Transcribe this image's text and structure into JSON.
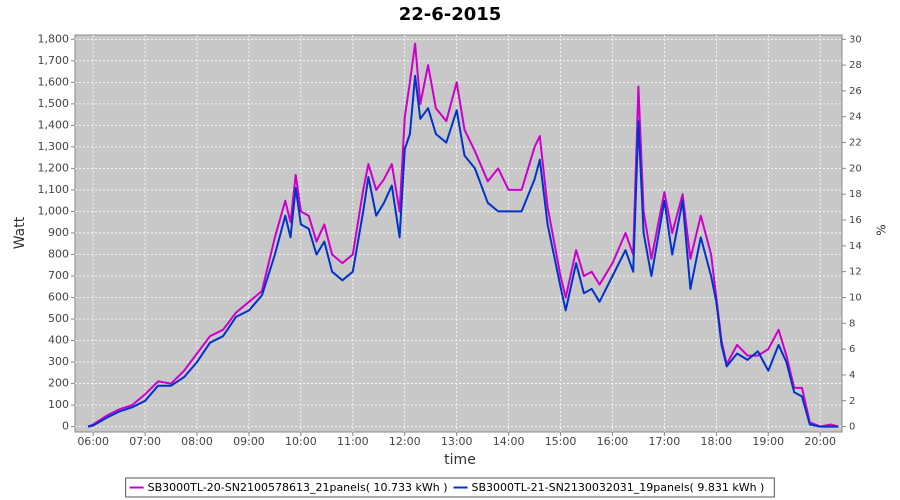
{
  "chart_data": {
    "type": "line",
    "title": "22-6-2015",
    "x_label": "time",
    "y_label": "Watt",
    "y2_label": "%",
    "x": [
      5.9,
      6.0,
      6.25,
      6.5,
      6.75,
      7.0,
      7.25,
      7.5,
      7.75,
      8.0,
      8.25,
      8.5,
      8.75,
      9.0,
      9.25,
      9.5,
      9.7,
      9.8,
      9.9,
      10.0,
      10.15,
      10.3,
      10.45,
      10.6,
      10.8,
      11.0,
      11.2,
      11.3,
      11.45,
      11.6,
      11.75,
      11.9,
      12.0,
      12.1,
      12.2,
      12.3,
      12.45,
      12.6,
      12.8,
      13.0,
      13.15,
      13.35,
      13.6,
      13.8,
      14.0,
      14.25,
      14.5,
      14.6,
      14.75,
      15.0,
      15.1,
      15.3,
      15.45,
      15.6,
      15.75,
      16.0,
      16.25,
      16.4,
      16.5,
      16.6,
      16.75,
      17.0,
      17.15,
      17.35,
      17.5,
      17.7,
      17.9,
      18.0,
      18.1,
      18.2,
      18.4,
      18.6,
      18.8,
      19.0,
      19.2,
      19.35,
      19.5,
      19.65,
      19.8,
      20.0,
      20.2,
      20.35
    ],
    "series": [
      {
        "name": "SB3000TL-20-SN2100578613_21panels( 10.733 kWh )",
        "color": "#cc00cc",
        "values": [
          0,
          10,
          50,
          80,
          100,
          150,
          210,
          200,
          260,
          340,
          420,
          450,
          530,
          580,
          630,
          880,
          1050,
          950,
          1170,
          1000,
          980,
          860,
          940,
          800,
          760,
          800,
          1100,
          1220,
          1100,
          1150,
          1220,
          1000,
          1440,
          1600,
          1780,
          1500,
          1680,
          1480,
          1420,
          1600,
          1380,
          1280,
          1140,
          1200,
          1100,
          1100,
          1300,
          1350,
          1020,
          700,
          600,
          820,
          700,
          720,
          660,
          760,
          900,
          800,
          1580,
          1000,
          780,
          1090,
          900,
          1080,
          780,
          980,
          800,
          600,
          400,
          290,
          380,
          330,
          330,
          360,
          450,
          330,
          180,
          180,
          20,
          0,
          10,
          0
        ]
      },
      {
        "name": "SB3000TL-21-SN2130032031_19panels( 9.831 kWh )",
        "color": "#0033cc",
        "values": [
          0,
          5,
          40,
          70,
          90,
          120,
          190,
          190,
          230,
          300,
          390,
          420,
          510,
          540,
          610,
          800,
          980,
          880,
          1110,
          940,
          920,
          800,
          860,
          720,
          680,
          720,
          1000,
          1160,
          980,
          1040,
          1120,
          880,
          1290,
          1360,
          1630,
          1430,
          1480,
          1360,
          1320,
          1470,
          1260,
          1200,
          1040,
          1000,
          1000,
          1000,
          1150,
          1240,
          940,
          650,
          540,
          760,
          620,
          640,
          580,
          700,
          820,
          720,
          1420,
          900,
          700,
          1050,
          800,
          1050,
          640,
          880,
          700,
          580,
          380,
          280,
          340,
          310,
          350,
          260,
          380,
          300,
          160,
          140,
          10,
          0,
          0,
          0
        ]
      }
    ],
    "xlim": [
      5.65,
      20.42
    ],
    "xticks": [
      {
        "value": 6,
        "label": "06:00"
      },
      {
        "value": 7,
        "label": "07:00"
      },
      {
        "value": 8,
        "label": "08:00"
      },
      {
        "value": 9,
        "label": "09:00"
      },
      {
        "value": 10,
        "label": "10:00"
      },
      {
        "value": 11,
        "label": "11:00"
      },
      {
        "value": 12,
        "label": "12:00"
      },
      {
        "value": 13,
        "label": "13:00"
      },
      {
        "value": 14,
        "label": "14:00"
      },
      {
        "value": 15,
        "label": "15:00"
      },
      {
        "value": 16,
        "label": "16:00"
      },
      {
        "value": 17,
        "label": "17:00"
      },
      {
        "value": 18,
        "label": "18:00"
      },
      {
        "value": 19,
        "label": "19:00"
      },
      {
        "value": 20,
        "label": "20:00"
      }
    ],
    "ylim": [
      -25,
      1820
    ],
    "yticks": [
      0,
      100,
      200,
      300,
      400,
      500,
      600,
      700,
      800,
      900,
      {
        "value": 1000,
        "label": "1,000"
      },
      {
        "value": 1100,
        "label": "1,100"
      },
      {
        "value": 1200,
        "label": "1,200"
      },
      {
        "value": 1300,
        "label": "1,300"
      },
      {
        "value": 1400,
        "label": "1,400"
      },
      {
        "value": 1500,
        "label": "1,500"
      },
      {
        "value": 1600,
        "label": "1,600"
      },
      {
        "value": 1700,
        "label": "1,700"
      },
      {
        "value": 1800,
        "label": "1,800"
      }
    ],
    "y2lim": [
      -0.42,
      30.33
    ],
    "y2ticks": [
      0,
      2,
      4,
      6,
      8,
      10,
      12,
      14,
      16,
      18,
      20,
      22,
      24,
      26,
      28,
      30
    ],
    "grid": true,
    "legend": "bottom",
    "plot_background": "#c8c8c8"
  }
}
